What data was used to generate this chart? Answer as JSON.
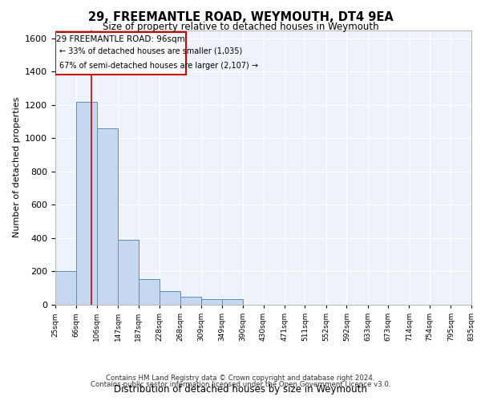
{
  "title": "29, FREEMANTLE ROAD, WEYMOUTH, DT4 9EA",
  "subtitle": "Size of property relative to detached houses in Weymouth",
  "xlabel": "Distribution of detached houses by size in Weymouth",
  "ylabel": "Number of detached properties",
  "annotation_title": "29 FREEMANTLE ROAD: 96sqm",
  "annotation_line2": "← 33% of detached houses are smaller (1,035)",
  "annotation_line3": "67% of semi-detached houses are larger (2,107) →",
  "footer1": "Contains HM Land Registry data © Crown copyright and database right 2024.",
  "footer2": "Contains public sector information licensed under the Open Government Licence v3.0.",
  "bar_edges": [
    25,
    66,
    106,
    147,
    187,
    228,
    268,
    309,
    349,
    390,
    430,
    471,
    511,
    552,
    592,
    633,
    673,
    714,
    754,
    795,
    835
  ],
  "bar_heights": [
    200,
    1220,
    1060,
    390,
    155,
    80,
    50,
    35,
    35,
    0,
    0,
    0,
    0,
    0,
    0,
    0,
    0,
    0,
    0,
    0
  ],
  "bar_color": "#c5d8ef",
  "bar_edge_color": "#5b8db8",
  "property_line_x": 96,
  "ylim": [
    0,
    1650
  ],
  "yticks": [
    0,
    200,
    400,
    600,
    800,
    1000,
    1200,
    1400,
    1600
  ],
  "bg_color": "#eef2fb",
  "grid_color": "#ffffff",
  "red_line_color": "#cc0000",
  "box_edge_color": "#cc0000"
}
